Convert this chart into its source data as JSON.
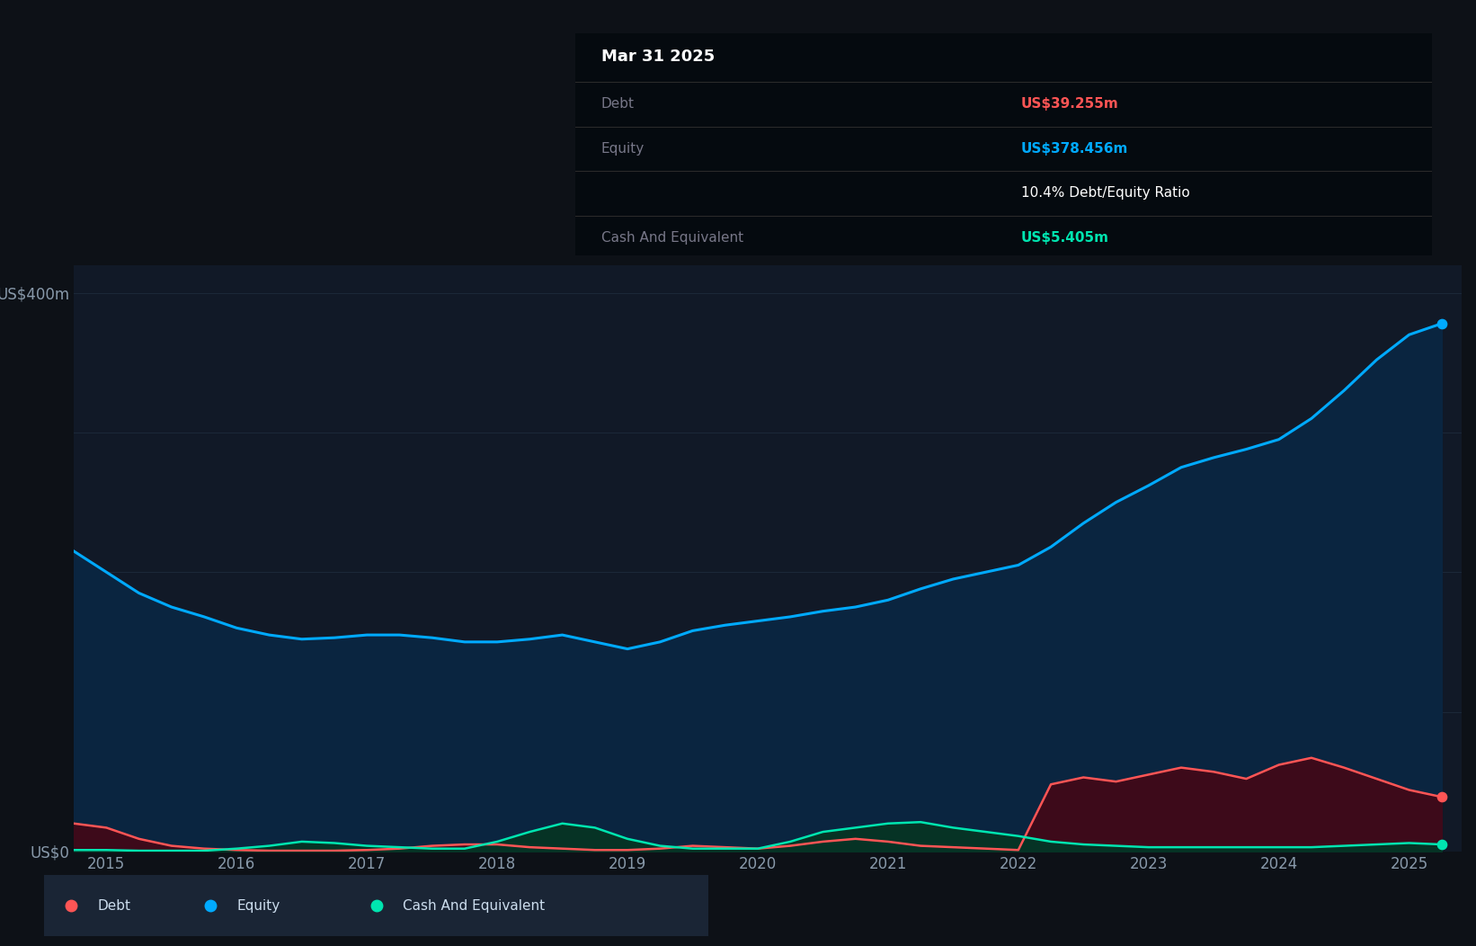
{
  "background_color": "#0d1117",
  "plot_bg_color": "#111927",
  "ylim": [
    0,
    420
  ],
  "xlim": [
    2014.75,
    2025.4
  ],
  "yticks": [
    0,
    100,
    200,
    300,
    400
  ],
  "ytick_labels": [
    "US$0",
    "",
    "",
    "",
    "US$400m"
  ],
  "grid_color": "#1e2d3d",
  "equity_color": "#00aaff",
  "equity_fill": "#0a2540",
  "debt_color": "#ff5555",
  "debt_fill": "#3d0a1a",
  "cash_color": "#00e5b0",
  "cash_fill": "#063325",
  "tooltip_bg": "#050a0f",
  "tooltip_date": "Mar 31 2025",
  "tooltip_debt_label": "Debt",
  "tooltip_debt_value": "US$39.255m",
  "tooltip_debt_color": "#ff5555",
  "tooltip_equity_label": "Equity",
  "tooltip_equity_value": "US$378.456m",
  "tooltip_equity_color": "#00aaff",
  "tooltip_ratio": "10.4% Debt/Equity Ratio",
  "tooltip_cash_label": "Cash And Equivalent",
  "tooltip_cash_value": "US$5.405m",
  "tooltip_cash_color": "#00e5b0",
  "legend_bg": "#1a2535",
  "years": [
    2014.75,
    2015.0,
    2015.25,
    2015.5,
    2015.75,
    2016.0,
    2016.25,
    2016.5,
    2016.75,
    2017.0,
    2017.25,
    2017.5,
    2017.75,
    2018.0,
    2018.25,
    2018.5,
    2018.75,
    2019.0,
    2019.25,
    2019.5,
    2019.75,
    2020.0,
    2020.25,
    2020.5,
    2020.75,
    2021.0,
    2021.25,
    2021.5,
    2021.75,
    2022.0,
    2022.25,
    2022.5,
    2022.75,
    2023.0,
    2023.25,
    2023.5,
    2023.75,
    2024.0,
    2024.25,
    2024.5,
    2024.75,
    2025.0,
    2025.25
  ],
  "equity": [
    215,
    200,
    185,
    175,
    168,
    160,
    155,
    152,
    153,
    155,
    155,
    153,
    150,
    150,
    152,
    155,
    150,
    145,
    150,
    158,
    162,
    165,
    168,
    172,
    175,
    180,
    188,
    195,
    200,
    205,
    218,
    235,
    250,
    262,
    275,
    282,
    288,
    295,
    310,
    330,
    352,
    370,
    378
  ],
  "debt": [
    20,
    17,
    9,
    4,
    2,
    1,
    0.5,
    0.5,
    0.5,
    1,
    2,
    4,
    5,
    5,
    3,
    2,
    1,
    1,
    2,
    4,
    3,
    2,
    4,
    7,
    9,
    7,
    4,
    3,
    2,
    1,
    48,
    53,
    50,
    55,
    60,
    57,
    52,
    62,
    67,
    60,
    52,
    44,
    39
  ],
  "cash": [
    1,
    1,
    0.5,
    0.5,
    0.5,
    2,
    4,
    7,
    6,
    4,
    3,
    2,
    2,
    7,
    14,
    20,
    17,
    9,
    4,
    2,
    2,
    2,
    7,
    14,
    17,
    20,
    21,
    17,
    14,
    11,
    7,
    5,
    4,
    3,
    3,
    3,
    3,
    3,
    3,
    4,
    5,
    6,
    5
  ],
  "xtick_positions": [
    2015,
    2016,
    2017,
    2018,
    2019,
    2020,
    2021,
    2022,
    2023,
    2024,
    2025
  ]
}
